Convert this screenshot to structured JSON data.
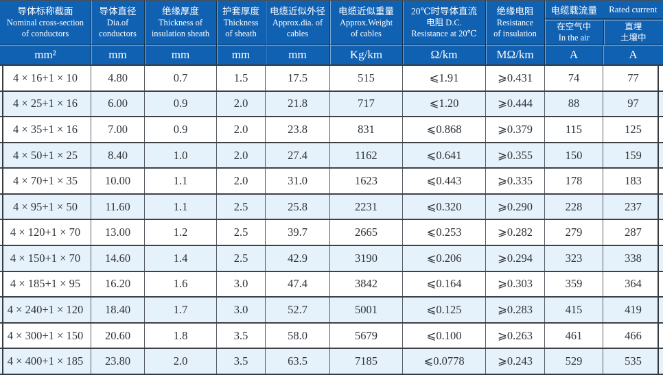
{
  "colors": {
    "header_bg": "#1161b2",
    "header_text": "#ffffff",
    "row_bg": "#ffffff",
    "row_alt_bg": "#e6f2fb",
    "grid_line": "#3c4146"
  },
  "header": {
    "columns": [
      {
        "line1": "导体标称截面",
        "line2": "Nominal cross-section",
        "line3": "of conductors"
      },
      {
        "line1": "导体直径",
        "line2": "Dia.of",
        "line3": "conductors"
      },
      {
        "line1": "绝缘厚度",
        "line2": "Thickness of",
        "line3": "insulation sheath"
      },
      {
        "line1": "护套厚度",
        "line2": "Thickness",
        "line3": "of sheath"
      },
      {
        "line1": "电缆近似外径",
        "line2": "Approx.dia. of",
        "line3": "cables"
      },
      {
        "line1": "电缆近似重量",
        "line2": "Approx.Weight",
        "line3": "of cables"
      },
      {
        "line1": "20℃时导体直流",
        "line2": "电阻 D.C.",
        "line3": "Resistance at 20℃"
      },
      {
        "line1": "绝缘电阻",
        "line2": "Resistance",
        "line3": "of insulation"
      }
    ],
    "current_group": {
      "zh": "电缆载流量",
      "en": "Rated current",
      "sub1_line1": "在空气中",
      "sub1_line2": "In the air",
      "sub2_line1": "直埋",
      "sub2_line2": "土壤中"
    },
    "units": [
      "mm²",
      "mm",
      "mm",
      "mm",
      "mm",
      "Kg/km",
      "Ω/km",
      "MΩ/km",
      "A",
      "A"
    ]
  },
  "rows": [
    [
      "4 × 16+1 × 10",
      "4.80",
      "0.7",
      "1.5",
      "17.5",
      "515",
      "⩽1.91",
      "⩾0.431",
      "74",
      "77"
    ],
    [
      "4 × 25+1 × 16",
      "6.00",
      "0.9",
      "2.0",
      "21.8",
      "717",
      "⩽1.20",
      "⩾0.444",
      "88",
      "97"
    ],
    [
      "4 × 35+1 × 16",
      "7.00",
      "0.9",
      "2.0",
      "23.8",
      "831",
      "⩽0.868",
      "⩾0.379",
      "115",
      "125"
    ],
    [
      "4 × 50+1 × 25",
      "8.40",
      "1.0",
      "2.0",
      "27.4",
      "1162",
      "⩽0.641",
      "⩾0.355",
      "150",
      "159"
    ],
    [
      "4 × 70+1 × 35",
      "10.00",
      "1.1",
      "2.0",
      "31.0",
      "1623",
      "⩽0.443",
      "⩾0.335",
      "178",
      "183"
    ],
    [
      "4 × 95+1 × 50",
      "11.60",
      "1.1",
      "2.5",
      "25.8",
      "2231",
      "⩽0.320",
      "⩾0.290",
      "228",
      "237"
    ],
    [
      "4 × 120+1 × 70",
      "13.00",
      "1.2",
      "2.5",
      "39.7",
      "2665",
      "⩽0.253",
      "⩾0.282",
      "279",
      "287"
    ],
    [
      "4 × 150+1 × 70",
      "14.60",
      "1.4",
      "2.5",
      "42.9",
      "3190",
      "⩽0.206",
      "⩾0.294",
      "323",
      "338"
    ],
    [
      "4 × 185+1 × 95",
      "16.20",
      "1.6",
      "3.0",
      "47.4",
      "3842",
      "⩽0.164",
      "⩾0.303",
      "359",
      "364"
    ],
    [
      "4 × 240+1 × 120",
      "18.40",
      "1.7",
      "3.0",
      "52.7",
      "5001",
      "⩽0.125",
      "⩾0.283",
      "415",
      "419"
    ],
    [
      "4 × 300+1 × 150",
      "20.60",
      "1.8",
      "3.5",
      "58.0",
      "5679",
      "⩽0.100",
      "⩾0.263",
      "461",
      "466"
    ],
    [
      "4 × 400+1 × 185",
      "23.80",
      "2.0",
      "3.5",
      "63.5",
      "7185",
      "⩽0.0778",
      "⩾0.243",
      "529",
      "535"
    ]
  ]
}
